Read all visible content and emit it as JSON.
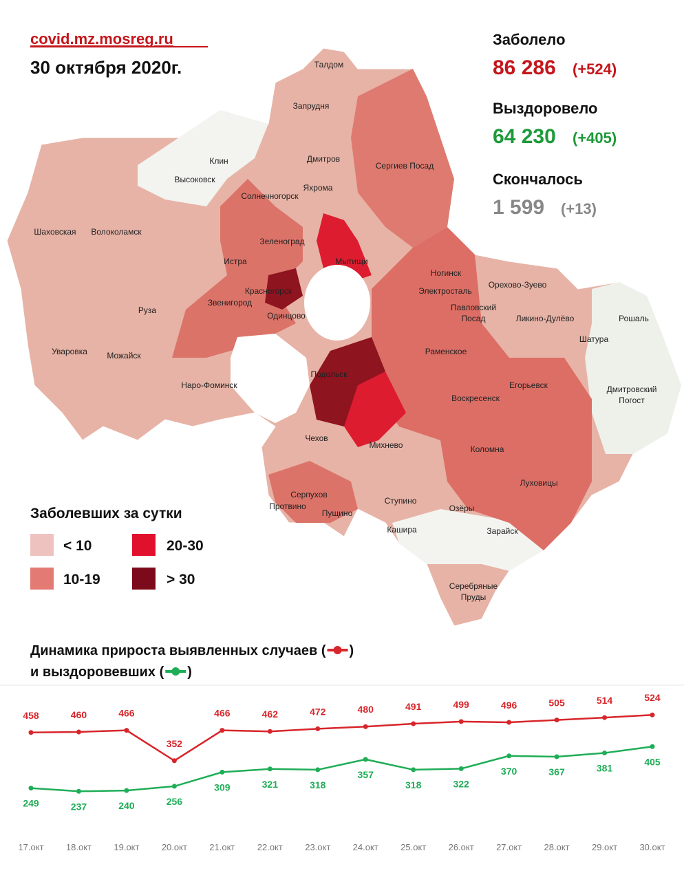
{
  "header": {
    "site": "covid.mz.mosreg.ru",
    "date": "30 октября 2020г."
  },
  "stats": [
    {
      "label": "Заболело",
      "value": "86 286",
      "delta": "(+524)"
    },
    {
      "label": "Выздоровело",
      "value": "64 230",
      "delta": "(+405)"
    },
    {
      "label": "Скончалось",
      "value": "1 599",
      "delta": "(+13)"
    }
  ],
  "map": {
    "towns": [
      "Талдом",
      "Запрудня",
      "Клин",
      "Высоковск",
      "Дмитров",
      "Яхрома",
      "Сергиев Посад",
      "Солнечногорск",
      "Шаховская",
      "Волоколамск",
      "Зеленоград",
      "Истра",
      "Мытищи",
      "Красногорск",
      "Звенигород",
      "Одинцово",
      "Руза",
      "Ногинск",
      "Электросталь",
      "Орехово-Зуево",
      "Павловский",
      "Посад",
      "Ликино-Дулёво",
      "Рошаль",
      "Шатура",
      "Уваровка",
      "Можайск",
      "Раменское",
      "Наро-Фоминск",
      "Подольск",
      "Егорьевск",
      "Воскресенск",
      "Дмитровский",
      "Погост",
      "Чехов",
      "Михнево",
      "Коломна",
      "Луховицы",
      "Серпухов",
      "Протвино",
      "Пущино",
      "Ступино",
      "Озёры",
      "Кашира",
      "Зарайск",
      "Серебряные",
      "Пруды"
    ]
  },
  "legend": {
    "title": "Заболевших за сутки",
    "items": [
      "< 10",
      "10-19",
      "20-30",
      "> 30"
    ]
  },
  "chart_data": {
    "type": "line",
    "title": [
      "Динамика прироста выявленных случаев (",
      ")"
    ],
    "subtitle": [
      "и выздоровевших (",
      ")"
    ],
    "categories": [
      "17.окт",
      "18.окт",
      "19.окт",
      "20.окт",
      "21.окт",
      "22.окт",
      "23.окт",
      "24.окт",
      "25.окт",
      "26.окт",
      "27.окт",
      "28.окт",
      "29.окт",
      "30.окт"
    ],
    "series": [
      {
        "color": "#d7262b",
        "values": [
          458,
          460,
          466,
          352,
          466,
          462,
          472,
          480,
          491,
          499,
          496,
          505,
          514,
          524
        ]
      },
      {
        "color": "#1fad57",
        "values": [
          249,
          237,
          240,
          256,
          309,
          321,
          318,
          357,
          318,
          322,
          370,
          367,
          381,
          405
        ]
      }
    ]
  }
}
